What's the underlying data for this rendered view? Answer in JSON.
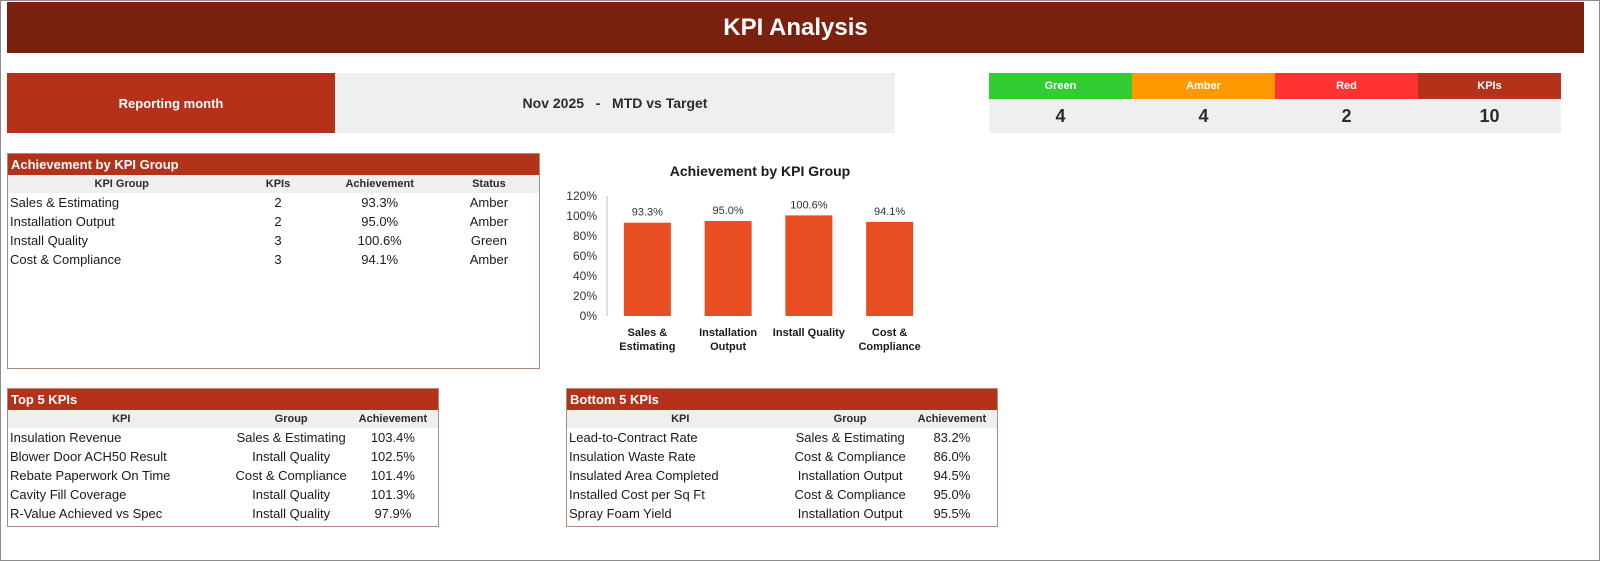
{
  "title": "KPI Analysis",
  "reporting": {
    "label": "Reporting month",
    "value": "Nov 2025   -   MTD vs Target"
  },
  "summary": [
    {
      "label": "Green",
      "value": "4",
      "color": "#33cc33"
    },
    {
      "label": "Amber",
      "value": "4",
      "color": "#ff9900"
    },
    {
      "label": "Red",
      "value": "2",
      "color": "#ff3333"
    },
    {
      "label": "KPIs",
      "value": "10",
      "color": "#b4311a"
    }
  ],
  "group_table": {
    "title": "Achievement by KPI Group",
    "headers": [
      "KPI Group",
      "KPIs",
      "Achievement",
      "Status"
    ],
    "rows": [
      [
        "Sales & Estimating",
        "2",
        "93.3%",
        "Amber"
      ],
      [
        "Installation Output",
        "2",
        "95.0%",
        "Amber"
      ],
      [
        "Install Quality",
        "3",
        "100.6%",
        "Green"
      ],
      [
        "Cost & Compliance",
        "3",
        "94.1%",
        "Amber"
      ]
    ]
  },
  "top5": {
    "title": "Top 5 KPIs",
    "headers": [
      "KPI",
      "Group",
      "Achievement"
    ],
    "rows": [
      [
        "Insulation Revenue",
        "Sales & Estimating",
        "103.4%"
      ],
      [
        "Blower Door ACH50 Result",
        "Install Quality",
        "102.5%"
      ],
      [
        "Rebate Paperwork On Time",
        "Cost & Compliance",
        "101.4%"
      ],
      [
        "Cavity Fill Coverage",
        "Install Quality",
        "101.3%"
      ],
      [
        "R-Value Achieved vs Spec",
        "Install Quality",
        "97.9%"
      ]
    ]
  },
  "bottom5": {
    "title": "Bottom 5 KPIs",
    "headers": [
      "KPI",
      "Group",
      "Achievement"
    ],
    "rows": [
      [
        "Lead-to-Contract Rate",
        "Sales & Estimating",
        "83.2%"
      ],
      [
        "Insulation Waste Rate",
        "Cost & Compliance",
        "86.0%"
      ],
      [
        "Insulated Area Completed",
        "Installation Output",
        "94.5%"
      ],
      [
        "Installed Cost per Sq Ft",
        "Cost & Compliance",
        "95.0%"
      ],
      [
        "Spray Foam Yield",
        "Installation Output",
        "95.5%"
      ]
    ]
  },
  "chart_data": {
    "type": "bar",
    "title": "Achievement by KPI Group",
    "categories": [
      [
        "Sales &",
        "Estimating"
      ],
      [
        "Installation",
        "Output"
      ],
      [
        "Install Quality"
      ],
      [
        "Cost &",
        "Compliance"
      ]
    ],
    "values": [
      93.3,
      95.0,
      100.6,
      94.1
    ],
    "data_labels": [
      "93.3%",
      "95.0%",
      "100.6%",
      "94.1%"
    ],
    "ylim": [
      0,
      120
    ],
    "yticks": [
      "0%",
      "20%",
      "40%",
      "60%",
      "80%",
      "100%",
      "120%"
    ],
    "bar_color": "#e84e22",
    "grid": false,
    "legend": "none"
  }
}
